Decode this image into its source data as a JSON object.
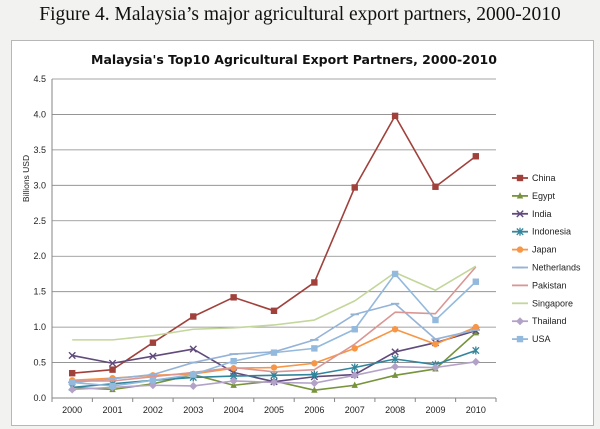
{
  "figure_caption": "Figure 4. Malaysia’s major agricultural export partners, 2000-2010",
  "chart_data": {
    "type": "line",
    "title": "Malaysia's Top10  Agricultural Export Partners, 2000-2010",
    "ylabel": "Billions USD",
    "xlabel": "",
    "ylim": [
      0,
      4.5
    ],
    "yticks": [
      "0.0",
      "0.5",
      "1.0",
      "1.5",
      "2.0",
      "2.5",
      "3.0",
      "3.5",
      "4.0",
      "4.5"
    ],
    "grid": true,
    "legend_position": "right",
    "categories": [
      "2000",
      "2001",
      "2002",
      "2003",
      "2004",
      "2005",
      "2006",
      "2007",
      "2008",
      "2009",
      "2010"
    ],
    "series": [
      {
        "name": "China",
        "color": "#a0413c",
        "marker": "square",
        "values": [
          0.35,
          0.4,
          0.78,
          1.15,
          1.42,
          1.23,
          1.63,
          2.97,
          3.98,
          2.98,
          3.41
        ]
      },
      {
        "name": "Egypt",
        "color": "#77933c",
        "marker": "triangle",
        "values": [
          0.15,
          0.12,
          0.2,
          0.33,
          0.18,
          0.24,
          0.11,
          0.18,
          0.32,
          0.41,
          0.92
        ]
      },
      {
        "name": "India",
        "color": "#604a7b",
        "marker": "x",
        "values": [
          0.6,
          0.49,
          0.59,
          0.69,
          0.36,
          0.23,
          0.3,
          0.33,
          0.65,
          0.78,
          0.95
        ]
      },
      {
        "name": "Indonesia",
        "color": "#31859c",
        "marker": "star",
        "values": [
          0.15,
          0.2,
          0.25,
          0.29,
          0.31,
          0.32,
          0.33,
          0.43,
          0.55,
          0.47,
          0.67
        ]
      },
      {
        "name": "Japan",
        "color": "#f79646",
        "marker": "circle",
        "values": [
          0.25,
          0.28,
          0.32,
          0.34,
          0.42,
          0.43,
          0.49,
          0.7,
          0.97,
          0.76,
          1.0
        ]
      },
      {
        "name": "Netherlands",
        "color": "#95b3d7",
        "marker": "dash",
        "values": [
          0.22,
          0.27,
          0.33,
          0.5,
          0.62,
          0.65,
          0.82,
          1.18,
          1.33,
          0.83,
          0.96
        ]
      },
      {
        "name": "Pakistan",
        "color": "#d99694",
        "marker": "none",
        "values": [
          0.24,
          0.24,
          0.3,
          0.36,
          0.43,
          0.37,
          0.4,
          0.76,
          1.21,
          1.19,
          1.85
        ]
      },
      {
        "name": "Singapore",
        "color": "#c3d69b",
        "marker": "none",
        "values": [
          0.82,
          0.82,
          0.88,
          0.97,
          0.99,
          1.03,
          1.1,
          1.37,
          1.77,
          1.52,
          1.86
        ]
      },
      {
        "name": "Thailand",
        "color": "#b3a2c7",
        "marker": "diamond",
        "values": [
          0.12,
          0.15,
          0.18,
          0.17,
          0.24,
          0.22,
          0.21,
          0.32,
          0.44,
          0.43,
          0.51
        ]
      },
      {
        "name": "USA",
        "color": "#93b9dd",
        "marker": "square",
        "values": [
          0.22,
          0.17,
          0.25,
          0.33,
          0.52,
          0.64,
          0.7,
          0.97,
          1.75,
          1.1,
          1.64
        ]
      }
    ]
  }
}
